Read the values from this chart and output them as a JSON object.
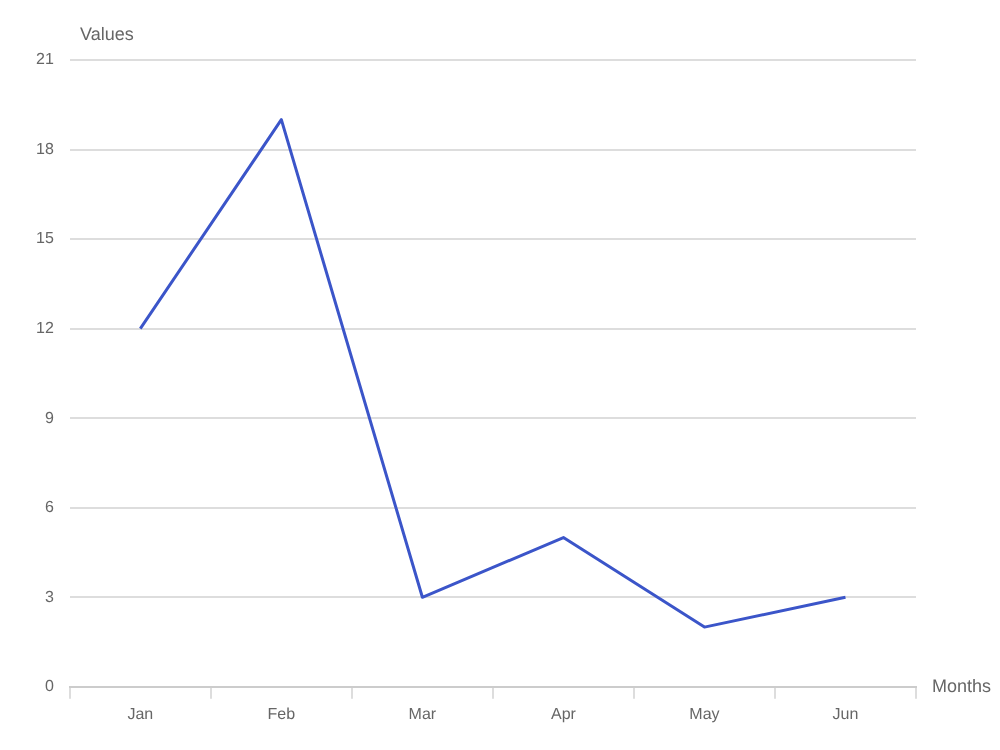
{
  "chart_data": {
    "type": "line",
    "xlabel": "Months",
    "ylabel": "Values",
    "categories": [
      "Jan",
      "Feb",
      "Mar",
      "Apr",
      "May",
      "Jun"
    ],
    "series": [
      {
        "color": "#3b55c9",
        "values": [
          12,
          19,
          3,
          5,
          2,
          3
        ]
      }
    ],
    "ylim": [
      0,
      21
    ],
    "yticks": [
      0,
      3,
      6,
      9,
      12,
      15,
      18,
      21
    ],
    "grid": "y",
    "legend": false,
    "marker": "none",
    "line_style": "solid"
  }
}
